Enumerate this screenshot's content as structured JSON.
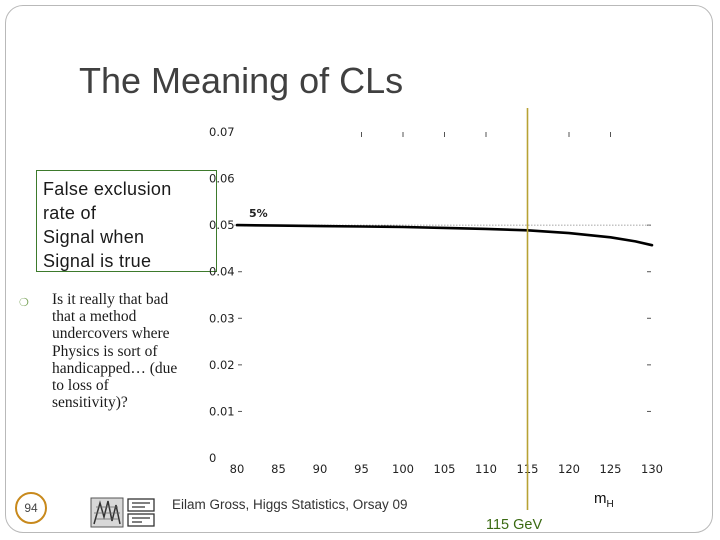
{
  "slide": {
    "title": "The Meaning of CLs",
    "box_lines": [
      "False exclusion",
      "rate of",
      "Signal when",
      "Signal is true"
    ],
    "bullet_lines": [
      "Is it really that bad",
      "that a method",
      "undercovers where",
      "Physics is sort of",
      "handicapped… (due",
      "to loss of",
      "sensitivity)?"
    ],
    "slide_number": "94",
    "footer": "Eilam Gross, Higgs Statistics, Orsay 09",
    "logo_icon": "institute-logo-icon",
    "mh_label": "m",
    "mh_sub": "H",
    "gev_label": "115 GeV"
  },
  "colors": {
    "title": "#404040",
    "box_border": "#3d7a2c",
    "marker_line": "#b7a234",
    "gev_label": "#3a6a12",
    "slide_number_ring": "#c8891c"
  },
  "chart_data": {
    "type": "line",
    "xlim": [
      80,
      130
    ],
    "ylim": [
      0,
      0.07
    ],
    "x_ticks": [
      "80",
      "85",
      "90",
      "95",
      "100",
      "105",
      "110",
      "115",
      "120",
      "125",
      "130"
    ],
    "y_ticks": [
      "0.07",
      "0.06",
      "0.05",
      "0.04",
      "0.03",
      "0.02",
      "0.01",
      "0"
    ],
    "reference_line": {
      "y": 0.05,
      "label": "5%"
    },
    "vertical_marker": {
      "x": 115
    },
    "series": [
      {
        "x": [
          80,
          85,
          90,
          95,
          100,
          105,
          110,
          115,
          120,
          125,
          128,
          130
        ],
        "values": [
          0.05,
          0.0499,
          0.0498,
          0.0497,
          0.0496,
          0.0494,
          0.0492,
          0.0489,
          0.0483,
          0.0474,
          0.0465,
          0.0457
        ]
      }
    ]
  }
}
